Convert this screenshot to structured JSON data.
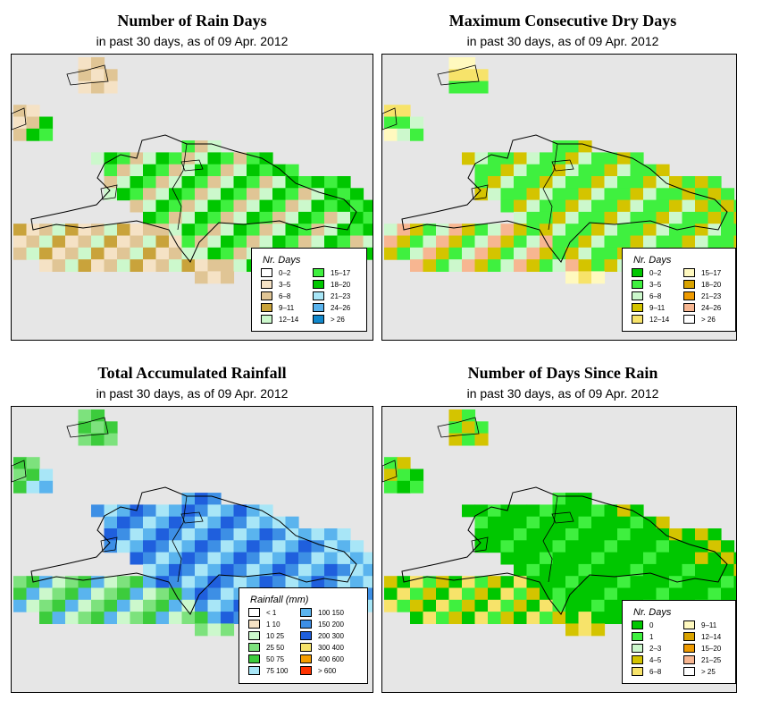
{
  "panels": [
    {
      "id": "rain-days",
      "title": "Number of Rain Days",
      "subtitle": "in past 30 days, as of  09 Apr. 2012",
      "legend": {
        "title": "Nr. Days",
        "items": [
          {
            "label": "0–2",
            "color": "#ffffff"
          },
          {
            "label": "3–5",
            "color": "#f5e2c5"
          },
          {
            "label": "6–8",
            "color": "#e0c595"
          },
          {
            "label": "9–11",
            "color": "#c9a33b"
          },
          {
            "label": "12–14",
            "color": "#ccf8cc"
          },
          {
            "label": "15–17",
            "color": "#3ff03f"
          },
          {
            "label": "18–20",
            "color": "#00c700"
          },
          {
            "label": "21–23",
            "color": "#a8e6f7"
          },
          {
            "label": "24–26",
            "color": "#5ab4ee"
          },
          {
            "label": "> 26",
            "color": "#1188cc"
          }
        ]
      }
    },
    {
      "id": "max-dry-days",
      "title": "Maximum Consecutive Dry Days",
      "subtitle": "in past 30 days, as of  09 Apr. 2012",
      "legend": {
        "title": "Nr. Days",
        "items": [
          {
            "label": "0–2",
            "color": "#00c700"
          },
          {
            "label": "3–5",
            "color": "#3ff03f"
          },
          {
            "label": "6–8",
            "color": "#ccf8cc"
          },
          {
            "label": "9–11",
            "color": "#d4c400"
          },
          {
            "label": "12–14",
            "color": "#f7e36a"
          },
          {
            "label": "15–17",
            "color": "#fff9bf"
          },
          {
            "label": "18–20",
            "color": "#d9a300"
          },
          {
            "label": "21–23",
            "color": "#ee9a00"
          },
          {
            "label": "24–26",
            "color": "#f7b691"
          },
          {
            "label": "> 26",
            "color": "#ffffff"
          }
        ]
      }
    },
    {
      "id": "total-rainfall",
      "title": "Total Accumulated Rainfall",
      "subtitle": "in past 30 days, as of  09 Apr. 2012",
      "legend": {
        "title": "Rainfall (mm)",
        "items": [
          {
            "label": "< 1",
            "color": "#ffffff"
          },
          {
            "label": "1    10",
            "color": "#f5e2c5"
          },
          {
            "label": "10    25",
            "color": "#ccf8cc"
          },
          {
            "label": "25    50",
            "color": "#7de27d"
          },
          {
            "label": "50    75",
            "color": "#3ccc3c"
          },
          {
            "label": "75  100",
            "color": "#a8e6f7"
          },
          {
            "label": "100  150",
            "color": "#5ab4ee"
          },
          {
            "label": "150  200",
            "color": "#3d8fe5"
          },
          {
            "label": "200  300",
            "color": "#1f5fdd"
          },
          {
            "label": "300  400",
            "color": "#f7e36a"
          },
          {
            "label": "400  600",
            "color": "#f59e00"
          },
          {
            "label": "> 600",
            "color": "#ff3300"
          }
        ]
      }
    },
    {
      "id": "days-since-rain",
      "title": "Number of Days Since Rain",
      "subtitle": "in past 30 days, as of  09 Apr. 2012",
      "legend": {
        "title": "Nr. Days",
        "items": [
          {
            "label": "0",
            "color": "#00c700"
          },
          {
            "label": "1",
            "color": "#3ff03f"
          },
          {
            "label": "2–3",
            "color": "#ccf8cc"
          },
          {
            "label": "4–5",
            "color": "#d4c400"
          },
          {
            "label": "6–8",
            "color": "#f7e36a"
          },
          {
            "label": "9–11",
            "color": "#fff9bf"
          },
          {
            "label": "12–14",
            "color": "#d9a300"
          },
          {
            "label": "15–20",
            "color": "#ee9a00"
          },
          {
            "label": "21–25",
            "color": "#f7b691"
          },
          {
            "label": "> 25",
            "color": "#ffffff"
          }
        ]
      }
    }
  ]
}
